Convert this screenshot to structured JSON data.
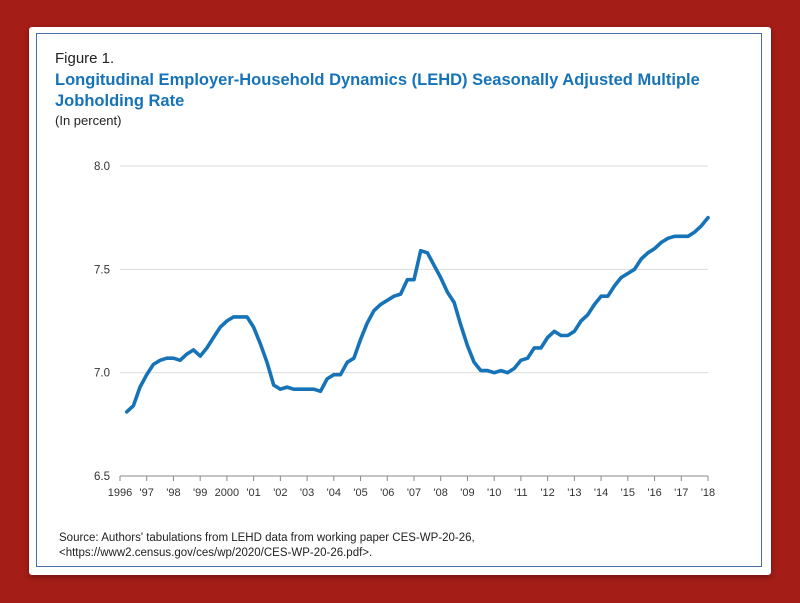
{
  "figure_label": "Figure 1.",
  "source": {
    "line1": "Source: Authors' tabulations from LEHD data from working paper CES-WP-20-26,",
    "line2": "<https://www2.census.gov/ces/wp/2020/CES-WP-20-26.pdf>."
  },
  "colors": {
    "line": "#1673b8",
    "title": "#1673b8",
    "background": "#a51d17"
  },
  "chart_data": {
    "type": "line",
    "title": "Longitudinal Employer-Household Dynamics (LEHD) Seasonally Adjusted Multiple Jobholding Rate",
    "ylabel": "(In percent)",
    "xlabel": "",
    "ylim": [
      6.5,
      8.0
    ],
    "xlim": [
      1996,
      2018
    ],
    "grid": true,
    "y_ticks": [
      {
        "value": 6.5,
        "label": "6.5"
      },
      {
        "value": 7.0,
        "label": "7.0"
      },
      {
        "value": 7.5,
        "label": "7.5"
      },
      {
        "value": 8.0,
        "label": "8.0"
      }
    ],
    "x_ticks": [
      {
        "value": 1996,
        "label": "1996"
      },
      {
        "value": 1997,
        "label": "'97"
      },
      {
        "value": 1998,
        "label": "'98"
      },
      {
        "value": 1999,
        "label": "'99"
      },
      {
        "value": 2000,
        "label": "2000"
      },
      {
        "value": 2001,
        "label": "'01"
      },
      {
        "value": 2002,
        "label": "'02"
      },
      {
        "value": 2003,
        "label": "'03"
      },
      {
        "value": 2004,
        "label": "'04"
      },
      {
        "value": 2005,
        "label": "'05"
      },
      {
        "value": 2006,
        "label": "'06"
      },
      {
        "value": 2007,
        "label": "'07"
      },
      {
        "value": 2008,
        "label": "'08"
      },
      {
        "value": 2009,
        "label": "'09"
      },
      {
        "value": 2010,
        "label": "'10"
      },
      {
        "value": 2011,
        "label": "'11"
      },
      {
        "value": 2012,
        "label": "'12"
      },
      {
        "value": 2013,
        "label": "'13"
      },
      {
        "value": 2014,
        "label": "'14"
      },
      {
        "value": 2015,
        "label": "'15"
      },
      {
        "value": 2016,
        "label": "'16"
      },
      {
        "value": 2017,
        "label": "'17"
      },
      {
        "value": 2018,
        "label": "'18"
      }
    ],
    "series": [
      {
        "x": [
          1996.25,
          1996.5,
          1996.75,
          1997.0,
          1997.25,
          1997.5,
          1997.75,
          1998.0,
          1998.25,
          1998.5,
          1998.75,
          1999.0,
          1999.25,
          1999.5,
          1999.75,
          2000.0,
          2000.25,
          2000.5,
          2000.75,
          2001.0,
          2001.25,
          2001.5,
          2001.75,
          2002.0,
          2002.25,
          2002.5,
          2002.75,
          2003.0,
          2003.25,
          2003.5,
          2003.75,
          2004.0,
          2004.25,
          2004.5,
          2004.75,
          2005.0,
          2005.25,
          2005.5,
          2005.75,
          2006.0,
          2006.25,
          2006.5,
          2006.75,
          2007.0,
          2007.25,
          2007.5,
          2007.75,
          2008.0,
          2008.25,
          2008.5,
          2008.75,
          2009.0,
          2009.25,
          2009.5,
          2009.75,
          2010.0,
          2010.25,
          2010.5,
          2010.75,
          2011.0,
          2011.25,
          2011.5,
          2011.75,
          2012.0,
          2012.25,
          2012.5,
          2012.75,
          2013.0,
          2013.25,
          2013.5,
          2013.75,
          2014.0,
          2014.25,
          2014.5,
          2014.75,
          2015.0,
          2015.25,
          2015.5,
          2015.75,
          2016.0,
          2016.25,
          2016.5,
          2016.75,
          2017.0,
          2017.25,
          2017.5,
          2017.75,
          2018.0
        ],
        "values": [
          6.81,
          6.84,
          6.93,
          6.99,
          7.04,
          7.06,
          7.07,
          7.07,
          7.06,
          7.09,
          7.11,
          7.08,
          7.12,
          7.17,
          7.22,
          7.25,
          7.27,
          7.27,
          7.27,
          7.22,
          7.14,
          7.05,
          6.94,
          6.92,
          6.93,
          6.92,
          6.92,
          6.92,
          6.92,
          6.91,
          6.97,
          6.99,
          6.99,
          7.05,
          7.07,
          7.16,
          7.24,
          7.3,
          7.33,
          7.35,
          7.37,
          7.38,
          7.45,
          7.45,
          7.59,
          7.58,
          7.52,
          7.46,
          7.39,
          7.34,
          7.23,
          7.13,
          7.05,
          7.01,
          7.01,
          7.0,
          7.01,
          7.0,
          7.02,
          7.06,
          7.07,
          7.12,
          7.12,
          7.17,
          7.2,
          7.18,
          7.18,
          7.2,
          7.25,
          7.28,
          7.33,
          7.37,
          7.37,
          7.42,
          7.46,
          7.48,
          7.5,
          7.55,
          7.58,
          7.6,
          7.63,
          7.65,
          7.66,
          7.66,
          7.66,
          7.68,
          7.71,
          7.75
        ]
      }
    ]
  }
}
